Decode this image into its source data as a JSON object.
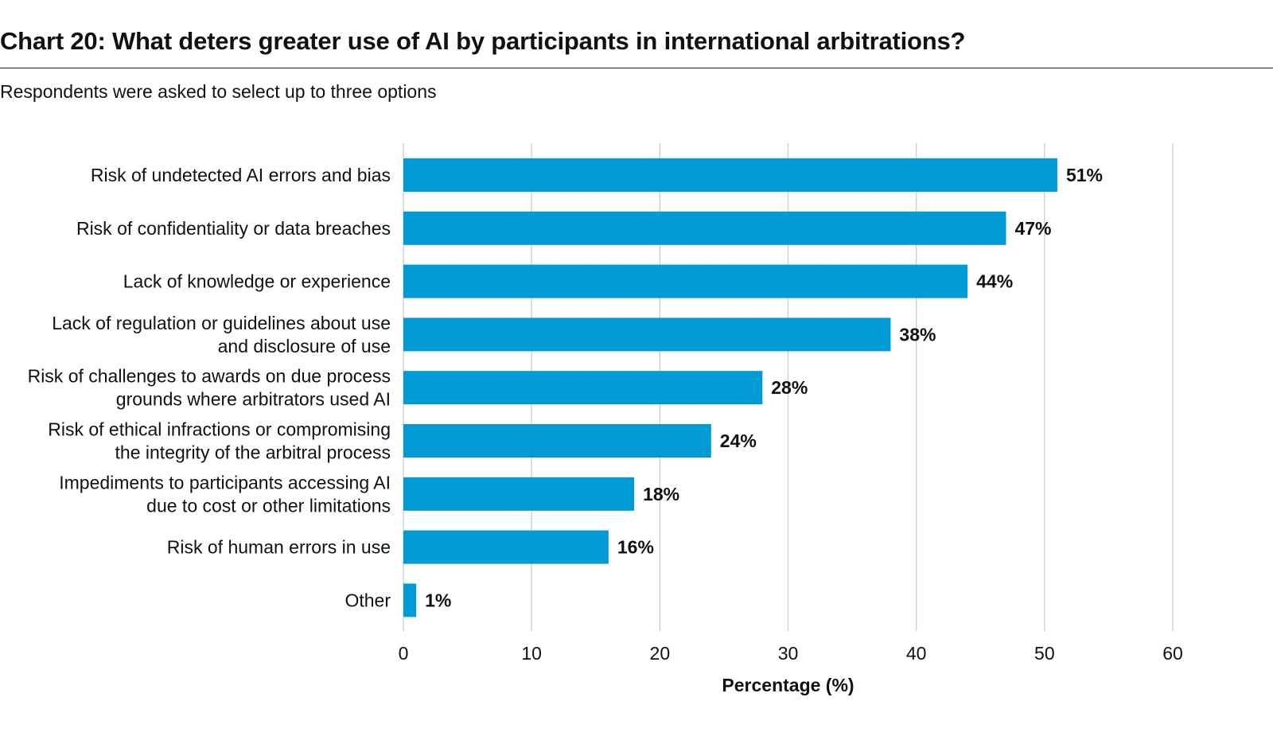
{
  "title": "Chart 20: What deters greater use of AI by participants in international arbitrations?",
  "subtitle": "Respondents were asked to select up to three options",
  "colors": {
    "bar": "#009bd5",
    "grid": "#c8c8c8"
  },
  "chart_data": {
    "type": "bar",
    "orientation": "horizontal",
    "categories": [
      [
        "Risk of undetected AI errors and bias"
      ],
      [
        "Risk of confidentiality or data breaches"
      ],
      [
        "Lack of knowledge or experience"
      ],
      [
        "Lack of regulation or guidelines about use",
        "and disclosure of use"
      ],
      [
        "Risk of challenges to awards on due process",
        "grounds where arbitrators used AI"
      ],
      [
        "Risk of ethical infractions or compromising",
        "the integrity of the arbitral process"
      ],
      [
        "Impediments to participants accessing AI",
        "due to cost or other limitations"
      ],
      [
        "Risk of human errors in use"
      ],
      [
        "Other"
      ]
    ],
    "values": [
      51,
      47,
      44,
      38,
      28,
      24,
      18,
      16,
      1
    ],
    "value_labels": [
      "51%",
      "47%",
      "44%",
      "38%",
      "28%",
      "24%",
      "18%",
      "16%",
      "1%"
    ],
    "xlabel": "Percentage (%)",
    "xlim": [
      0,
      60
    ],
    "xticks": [
      0,
      10,
      20,
      30,
      40,
      50,
      60
    ],
    "grid": true
  }
}
